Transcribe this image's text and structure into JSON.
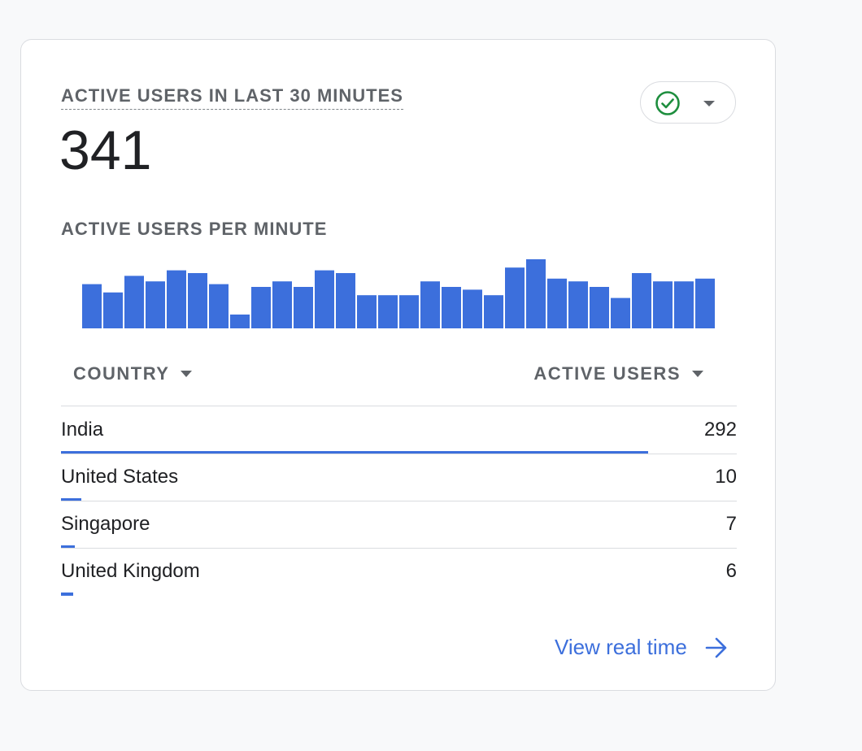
{
  "card": {
    "metric_title": "ACTIVE USERS IN LAST 30 MINUTES",
    "metric_value": "341",
    "status_icon": "check-circle-icon",
    "status_color": "#1e8e3e",
    "chart_title": "ACTIVE USERS PER MINUTE",
    "table": {
      "col_country": "COUNTRY",
      "col_users": "ACTIVE USERS",
      "rows": [
        {
          "country": "India",
          "users": "292",
          "share": 1.0
        },
        {
          "country": "United States",
          "users": "10",
          "share": 0.034
        },
        {
          "country": "Singapore",
          "users": "7",
          "share": 0.024
        },
        {
          "country": "United Kingdom",
          "users": "6",
          "share": 0.021
        }
      ]
    },
    "link_label": "View real time"
  },
  "chart_data": {
    "type": "bar",
    "title": "ACTIVE USERS PER MINUTE",
    "color": "#3c6fdc",
    "values": [
      16,
      13,
      19,
      17,
      21,
      20,
      16,
      5,
      15,
      17,
      15,
      21,
      20,
      12,
      12,
      12,
      17,
      15,
      14,
      12,
      22,
      25,
      18,
      17,
      15,
      11,
      20,
      17,
      17,
      18
    ],
    "ylim": [
      0,
      25
    ]
  }
}
